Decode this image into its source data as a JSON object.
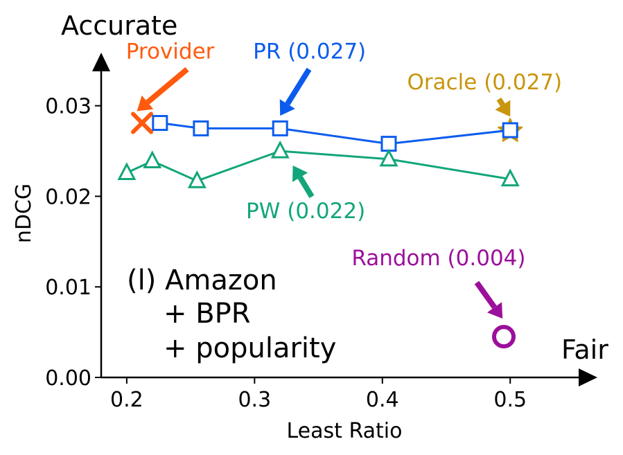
{
  "chart_data": {
    "type": "line",
    "xlabel": "Least Ratio",
    "ylabel": "nDCG",
    "xlim": [
      0.18,
      0.54
    ],
    "ylim": [
      0.0,
      0.0325
    ],
    "xticks": [
      0.2,
      0.3,
      0.4,
      0.5
    ],
    "xtick_labels": [
      "0.2",
      "0.3",
      "0.4",
      "0.5"
    ],
    "yticks": [
      0.0,
      0.01,
      0.02,
      0.03
    ],
    "ytick_labels": [
      "0.00",
      "0.01",
      "0.02",
      "0.03"
    ],
    "corner_labels": {
      "y_end": "Accurate",
      "x_end": "Fair"
    },
    "panel_label": [
      "(l) Amazon",
      "+ BPR",
      "+ popularity"
    ],
    "series": [
      {
        "name": "PR",
        "color": "#0b5ced",
        "marker": "square",
        "x": [
          0.226,
          0.258,
          0.32,
          0.405,
          0.5
        ],
        "y": [
          0.0281,
          0.0275,
          0.0275,
          0.0258,
          0.0273
        ]
      },
      {
        "name": "PW",
        "color": "#12a57a",
        "marker": "triangle",
        "x": [
          0.2,
          0.22,
          0.255,
          0.32,
          0.405,
          0.5
        ],
        "y": [
          0.0226,
          0.0239,
          0.0217,
          0.025,
          0.0241,
          0.0219
        ]
      }
    ],
    "points": [
      {
        "name": "Provider",
        "color": "#ff5a0e",
        "marker": "x",
        "x": 0.212,
        "y": 0.0281
      },
      {
        "name": "Oracle",
        "color": "#c8950c",
        "marker": "star",
        "x": 0.5,
        "y": 0.0272
      },
      {
        "name": "Random",
        "color": "#9c0f9c",
        "marker": "circle",
        "x": 0.495,
        "y": 0.0045
      }
    ],
    "annotations": [
      {
        "text": "Provider",
        "color": "#ff5a0e",
        "text_x": 0.234,
        "text_y": 0.0352,
        "tip_x": 0.208,
        "tip_y": 0.0294
      },
      {
        "text": "PR (0.027)",
        "color": "#0b5ced",
        "text_x": 0.343,
        "text_y": 0.0352,
        "tip_x": 0.32,
        "tip_y": 0.0289
      },
      {
        "text": "Oracle (0.027)",
        "color": "#c8950c",
        "text_x": 0.48,
        "text_y": 0.0318,
        "tip_x": 0.5,
        "tip_y": 0.0288
      },
      {
        "text": "PW (0.022)",
        "color": "#12a57a",
        "text_x": 0.34,
        "text_y": 0.0176,
        "tip_x": 0.33,
        "tip_y": 0.0234
      },
      {
        "text": "Random (0.004)",
        "color": "#9c0f9c",
        "text_x": 0.444,
        "text_y": 0.0124,
        "tip_x": 0.494,
        "tip_y": 0.0065
      }
    ]
  }
}
